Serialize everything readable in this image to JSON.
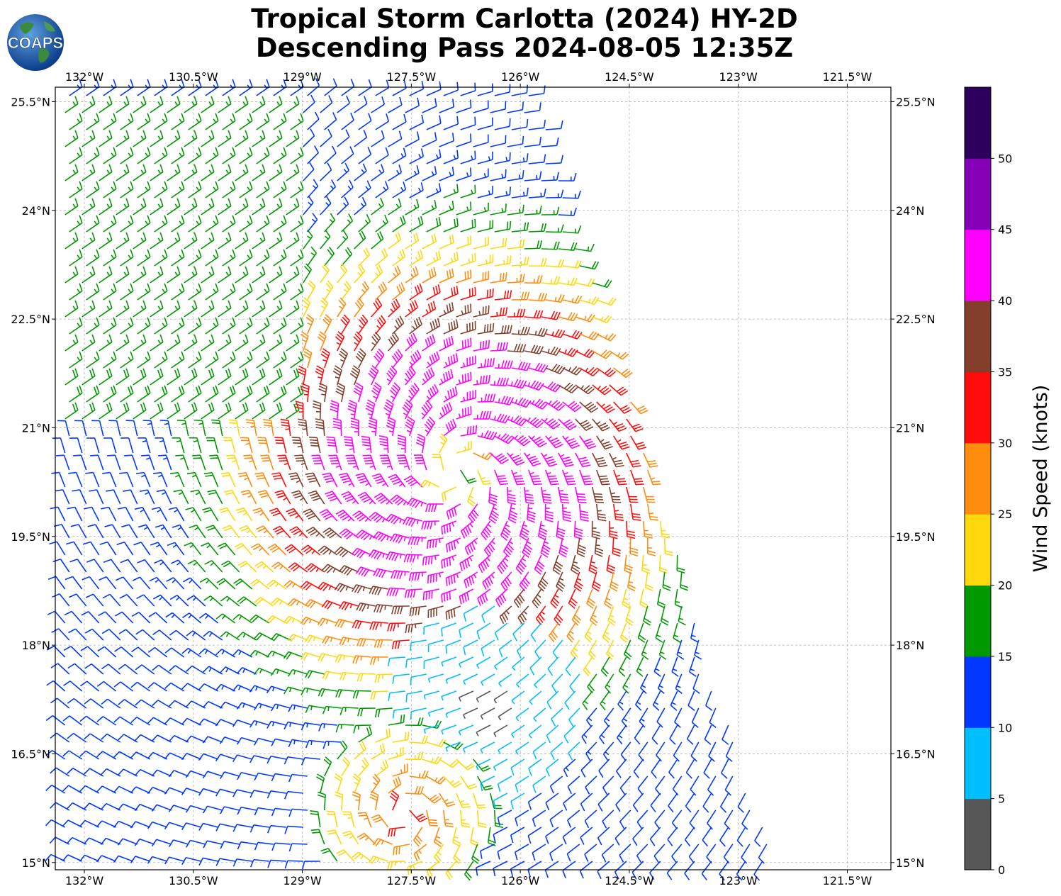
{
  "title": {
    "line1": "Tropical Storm Carlotta (2024) HY-2D",
    "line2": "Descending Pass 2024-08-05 12:35Z"
  },
  "logo": {
    "text": "COAPS",
    "icon": "globe-logo-icon"
  },
  "map": {
    "lon_range": [
      -132.4,
      -120.9
    ],
    "lat_range": [
      14.9,
      25.7
    ],
    "lon_ticks": [
      "132°W",
      "130.5°W",
      "129°W",
      "127.5°W",
      "126°W",
      "124.5°W",
      "123°W",
      "121.5°W"
    ],
    "lat_ticks": [
      "25.5°N",
      "24°N",
      "22.5°N",
      "21°N",
      "19.5°N",
      "18°N",
      "16.5°N",
      "15°N"
    ],
    "gridlines": true,
    "storm_center": {
      "lon": -126.9,
      "lat": 20.4
    },
    "secondary_center": {
      "lon": -126.4,
      "lat": 17.2
    }
  },
  "colorbar": {
    "label": "Wind Speed (knots)",
    "ticks": [
      "0",
      "5",
      "10",
      "15",
      "20",
      "25",
      "30",
      "35",
      "40",
      "45",
      "50"
    ],
    "bins": [
      {
        "min": 0,
        "max": 5,
        "color": "#575757"
      },
      {
        "min": 5,
        "max": 10,
        "color": "#00bfff"
      },
      {
        "min": 10,
        "max": 15,
        "color": "#0038ff"
      },
      {
        "min": 15,
        "max": 20,
        "color": "#009900"
      },
      {
        "min": 20,
        "max": 25,
        "color": "#ffd80d"
      },
      {
        "min": 25,
        "max": 30,
        "color": "#ff8c0d"
      },
      {
        "min": 30,
        "max": 35,
        "color": "#ff0d0d"
      },
      {
        "min": 35,
        "max": 40,
        "color": "#833f2b"
      },
      {
        "min": 40,
        "max": 45,
        "color": "#ff00ff"
      },
      {
        "min": 45,
        "max": 50,
        "color": "#8500b7"
      },
      {
        "min": 50,
        "max": 55,
        "color": "#2c005c"
      }
    ]
  }
}
